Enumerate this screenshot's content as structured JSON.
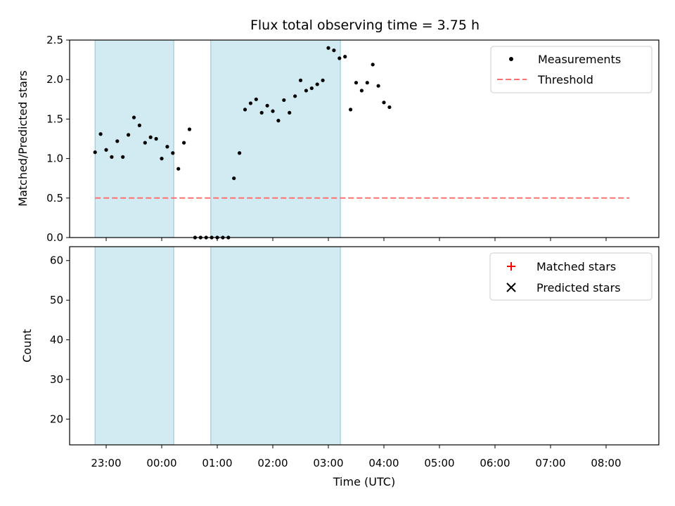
{
  "title": "Flux total observing time = 3.75 h",
  "shaded_color": "#add8e6",
  "chart_data": [
    {
      "type": "scatter",
      "ylabel": "Matched/Predicted stars",
      "xlabel": "",
      "ylim": [
        0,
        2.5
      ],
      "yticks": [
        "0.0",
        "0.5",
        "1.0",
        "1.5",
        "2.0",
        "2.5"
      ],
      "legend_position": "top-right",
      "threshold": {
        "name": "Threshold",
        "value": 0.5,
        "x_range": [
          "22:48",
          "08:25"
        ],
        "color": "#ff7070",
        "style": "dashed"
      },
      "shaded_intervals": [
        [
          "22:48",
          "00:13"
        ],
        [
          "00:53",
          "03:13"
        ]
      ],
      "series": [
        {
          "name": "Measurements",
          "color": "#000000",
          "marker": "dot",
          "points": [
            [
              "22:48",
              1.08
            ],
            [
              "22:54",
              1.31
            ],
            [
              "23:00",
              1.11
            ],
            [
              "23:06",
              1.02
            ],
            [
              "23:12",
              1.22
            ],
            [
              "23:18",
              1.02
            ],
            [
              "23:24",
              1.3
            ],
            [
              "23:30",
              1.52
            ],
            [
              "23:36",
              1.42
            ],
            [
              "23:42",
              1.2
            ],
            [
              "23:48",
              1.27
            ],
            [
              "23:54",
              1.25
            ],
            [
              "00:00",
              1.0
            ],
            [
              "00:06",
              1.15
            ],
            [
              "00:12",
              1.07
            ],
            [
              "00:18",
              0.87
            ],
            [
              "00:24",
              1.2
            ],
            [
              "00:30",
              1.37
            ],
            [
              "00:36",
              0.0
            ],
            [
              "00:42",
              0.0
            ],
            [
              "00:48",
              0.0
            ],
            [
              "00:54",
              0.0
            ],
            [
              "01:00",
              0.0
            ],
            [
              "01:06",
              0.0
            ],
            [
              "01:12",
              0.0
            ],
            [
              "01:18",
              0.75
            ],
            [
              "01:24",
              1.07
            ],
            [
              "01:30",
              1.62
            ],
            [
              "01:36",
              1.7
            ],
            [
              "01:42",
              1.75
            ],
            [
              "01:48",
              1.58
            ],
            [
              "01:54",
              1.67
            ],
            [
              "02:00",
              1.6
            ],
            [
              "02:06",
              1.48
            ],
            [
              "02:12",
              1.74
            ],
            [
              "02:18",
              1.58
            ],
            [
              "02:24",
              1.79
            ],
            [
              "02:30",
              1.99
            ],
            [
              "02:36",
              1.86
            ],
            [
              "02:42",
              1.89
            ],
            [
              "02:48",
              1.94
            ],
            [
              "02:54",
              1.99
            ],
            [
              "03:00",
              2.4
            ],
            [
              "03:06",
              2.37
            ],
            [
              "03:12",
              2.27
            ],
            [
              "03:18",
              2.29
            ],
            [
              "03:24",
              1.62
            ],
            [
              "03:30",
              1.96
            ],
            [
              "03:36",
              1.86
            ],
            [
              "03:42",
              1.96
            ],
            [
              "03:48",
              2.19
            ],
            [
              "03:54",
              1.92
            ],
            [
              "04:00",
              1.71
            ],
            [
              "04:06",
              1.65
            ]
          ]
        }
      ]
    },
    {
      "type": "scatter",
      "ylabel": "Count",
      "xlabel": "Time (UTC)",
      "ylim": [
        13.5,
        63.5
      ],
      "yticks": [
        "20",
        "30",
        "40",
        "50",
        "60"
      ],
      "xticks": [
        "23:00",
        "00:00",
        "01:00",
        "02:00",
        "03:00",
        "04:00",
        "05:00",
        "06:00",
        "07:00",
        "08:00"
      ],
      "legend_position": "top-right",
      "shaded_intervals": [
        [
          "22:48",
          "00:13"
        ],
        [
          "00:53",
          "03:13"
        ]
      ],
      "series": [
        {
          "name": "Matched stars",
          "color": "#ff0000",
          "marker": "plus",
          "points": []
        },
        {
          "name": "Predicted stars",
          "color": "#000000",
          "marker": "x",
          "points": []
        }
      ]
    }
  ]
}
